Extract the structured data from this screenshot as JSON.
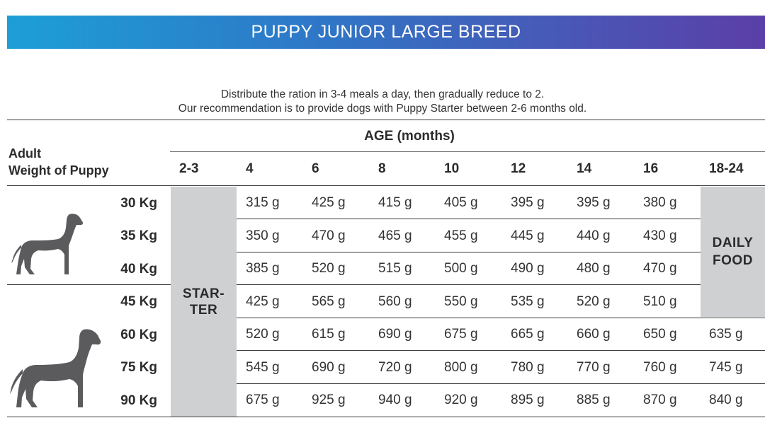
{
  "header": {
    "title": "PUPPY JUNIOR LARGE BREED"
  },
  "intro": {
    "line1": "Distribute the ration in 3-4 meals a day, then gradually reduce to 2.",
    "line2": "Our recommendation is to provide dogs with Puppy Starter between 2-6 months old."
  },
  "table": {
    "age_title": "AGE (months)",
    "weight_title_line1": "Adult",
    "weight_title_line2": "Weight of Puppy",
    "columns": [
      "2-3",
      "4",
      "6",
      "8",
      "10",
      "12",
      "14",
      "16",
      "18-24"
    ],
    "starter_line1": "STAR-",
    "starter_line2": "TER",
    "daily_line1": "DAILY",
    "daily_line2": "FOOD",
    "rows": [
      {
        "weight": "30 Kg",
        "values": [
          "315 g",
          "425 g",
          "415 g",
          "405 g",
          "395 g",
          "395 g",
          "380 g"
        ]
      },
      {
        "weight": "35 Kg",
        "values": [
          "350 g",
          "470 g",
          "465 g",
          "455 g",
          "445 g",
          "440 g",
          "430 g"
        ]
      },
      {
        "weight": "40 Kg",
        "values": [
          "385 g",
          "520 g",
          "515 g",
          "500 g",
          "490 g",
          "480 g",
          "470 g"
        ]
      },
      {
        "weight": "45 Kg",
        "values": [
          "425 g",
          "565 g",
          "560 g",
          "550 g",
          "535 g",
          "520 g",
          "510 g"
        ]
      },
      {
        "weight": "60 Kg",
        "values": [
          "520 g",
          "615 g",
          "690 g",
          "675 g",
          "665 g",
          "660 g",
          "650 g",
          "635 g"
        ]
      },
      {
        "weight": "75 Kg",
        "values": [
          "545 g",
          "690 g",
          "720 g",
          "800 g",
          "780 g",
          "770 g",
          "760 g",
          "745 g"
        ]
      },
      {
        "weight": "90 Kg",
        "values": [
          "675 g",
          "925 g",
          "940 g",
          "920 g",
          "895 g",
          "885 g",
          "870 g",
          "840 g"
        ]
      }
    ]
  },
  "icons": {
    "dog_small": "dog-silhouette-icon",
    "dog_large": "great-dane-silhouette-icon",
    "icon_color": "#5b5b5d"
  }
}
